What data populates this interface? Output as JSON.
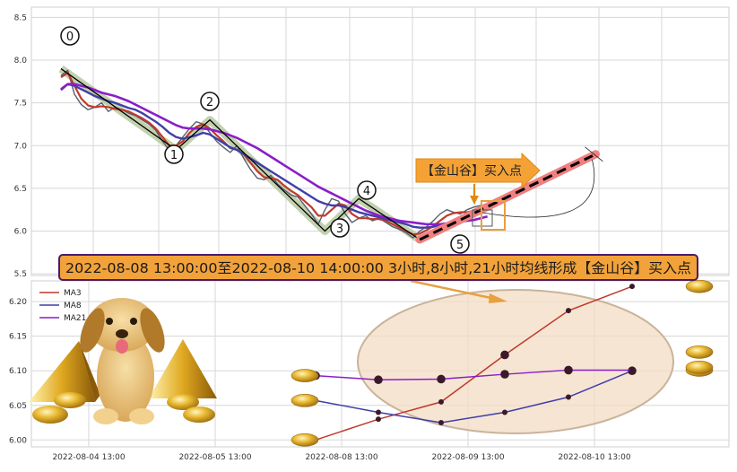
{
  "top_chart": {
    "y_ticks": [
      "8.5",
      "8.0",
      "7.5",
      "7.0",
      "6.5",
      "6.0",
      "5.5"
    ],
    "wave_labels": [
      "0",
      "1",
      "2",
      "3",
      "4",
      "5"
    ],
    "buy_callout": "【金山谷】买入点",
    "banner": "2022-08-08 13:00:00至2022-08-10 14:00:00 3小时,8小时,21小时均线形成【金山谷】买入点"
  },
  "bottom_chart": {
    "y_ticks": [
      "6.20",
      "6.15",
      "6.10",
      "6.05",
      "6.00"
    ],
    "x_ticks": [
      "2022-08-04 13:00",
      "2022-08-05 13:00",
      "2022-08-08 13:00",
      "2022-08-09 13:00",
      "2022-08-10 13:00"
    ]
  },
  "colors": {
    "ma3": "#c0392b",
    "ma8": "#3f3fa8",
    "ma21": "#8a1ec8",
    "price": "#556070",
    "zigzag": "#000000",
    "channel": "#b7c9a0",
    "target": "#f08080",
    "callout": "#f4a236",
    "banner_border": "#4a1a6b"
  },
  "chart_data": [
    {
      "type": "line",
      "ylim": [
        5.48,
        8.62
      ],
      "x_count": 64,
      "series": [
        {
          "values": [
            7.82,
            7.88,
            7.6,
            7.48,
            7.42,
            7.45,
            7.5,
            7.4,
            7.45,
            7.42,
            7.38,
            7.35,
            7.3,
            7.25,
            7.18,
            7.05,
            6.95,
            7.0,
            7.1,
            7.2,
            7.28,
            7.25,
            7.15,
            7.05,
            6.98,
            6.92,
            7.0,
            6.85,
            6.72,
            6.62,
            6.6,
            6.65,
            6.55,
            6.48,
            6.42,
            6.4,
            6.3,
            6.2,
            6.08,
            6.25,
            6.38,
            6.35,
            6.2,
            6.1,
            6.15,
            6.18,
            6.12,
            6.15,
            6.1,
            6.05,
            6.02,
            5.98,
            5.92,
            6.0,
            6.05,
            6.12,
            6.2,
            6.25,
            6.22,
            6.2,
            6.25,
            6.28,
            6.3,
            6.28
          ]
        },
        {
          "name": "MA3",
          "values": [
            7.8,
            7.85,
            7.7,
            7.55,
            7.47,
            7.45,
            7.46,
            7.45,
            7.43,
            7.42,
            7.4,
            7.36,
            7.32,
            7.27,
            7.2,
            7.1,
            7.0,
            7.0,
            7.05,
            7.15,
            7.22,
            7.25,
            7.2,
            7.12,
            7.05,
            6.97,
            6.95,
            6.9,
            6.8,
            6.7,
            6.63,
            6.62,
            6.6,
            6.53,
            6.47,
            6.42,
            6.35,
            6.28,
            6.18,
            6.18,
            6.25,
            6.32,
            6.3,
            6.2,
            6.15,
            6.15,
            6.14,
            6.14,
            6.12,
            6.08,
            6.04,
            6.0,
            5.96,
            5.97,
            6.01,
            6.06,
            6.12,
            6.18,
            6.21,
            6.22,
            6.22,
            6.24,
            6.26,
            6.28
          ]
        },
        {
          "name": "MA8",
          "values": [
            7.65,
            7.72,
            7.7,
            7.66,
            7.62,
            7.58,
            7.55,
            7.52,
            7.5,
            7.47,
            7.44,
            7.42,
            7.38,
            7.33,
            7.28,
            7.22,
            7.15,
            7.1,
            7.08,
            7.1,
            7.12,
            7.15,
            7.13,
            7.08,
            7.03,
            6.98,
            6.95,
            6.9,
            6.85,
            6.8,
            6.75,
            6.7,
            6.65,
            6.6,
            6.55,
            6.5,
            6.45,
            6.4,
            6.35,
            6.32,
            6.3,
            6.3,
            6.28,
            6.25,
            6.22,
            6.2,
            6.18,
            6.16,
            6.14,
            6.12,
            6.1,
            6.08,
            6.05,
            6.04,
            6.04,
            6.05,
            6.07,
            6.09,
            6.11,
            6.13,
            6.16,
            6.19,
            6.22,
            6.25
          ]
        },
        {
          "name": "MA21",
          "values": [
            7.66,
            7.72,
            7.72,
            7.7,
            7.68,
            7.65,
            7.62,
            7.6,
            7.58,
            7.55,
            7.52,
            7.48,
            7.44,
            7.4,
            7.36,
            7.32,
            7.28,
            7.24,
            7.21,
            7.2,
            7.2,
            7.2,
            7.19,
            7.17,
            7.15,
            7.12,
            7.09,
            7.05,
            7.01,
            6.97,
            6.92,
            6.87,
            6.82,
            6.77,
            6.72,
            6.67,
            6.62,
            6.57,
            6.52,
            6.48,
            6.44,
            6.4,
            6.36,
            6.32,
            6.28,
            6.24,
            6.21,
            6.18,
            6.16,
            6.14,
            6.12,
            6.11,
            6.1,
            6.09,
            6.08,
            6.08,
            6.08,
            6.09,
            6.1,
            6.11,
            6.12,
            6.13,
            6.15,
            6.17
          ]
        }
      ],
      "zigzag_points": [
        [
          0,
          7.9
        ],
        [
          17,
          6.95
        ],
        [
          22,
          7.3
        ],
        [
          39,
          6.0
        ],
        [
          44,
          6.38
        ],
        [
          53,
          5.9
        ],
        [
          79,
          6.9
        ]
      ]
    },
    {
      "type": "line",
      "ylim": [
        5.99,
        6.23
      ],
      "x": [
        0,
        1,
        2,
        3,
        4,
        5
      ],
      "series": [
        {
          "name": "MA3",
          "values": [
            6.0,
            6.03,
            6.055,
            6.123,
            6.187,
            6.222
          ]
        },
        {
          "name": "MA8",
          "values": [
            6.057,
            6.04,
            6.025,
            6.04,
            6.062,
            6.1
          ]
        },
        {
          "name": "MA21",
          "values": [
            6.093,
            6.087,
            6.088,
            6.095,
            6.101,
            6.101
          ]
        }
      ]
    }
  ]
}
